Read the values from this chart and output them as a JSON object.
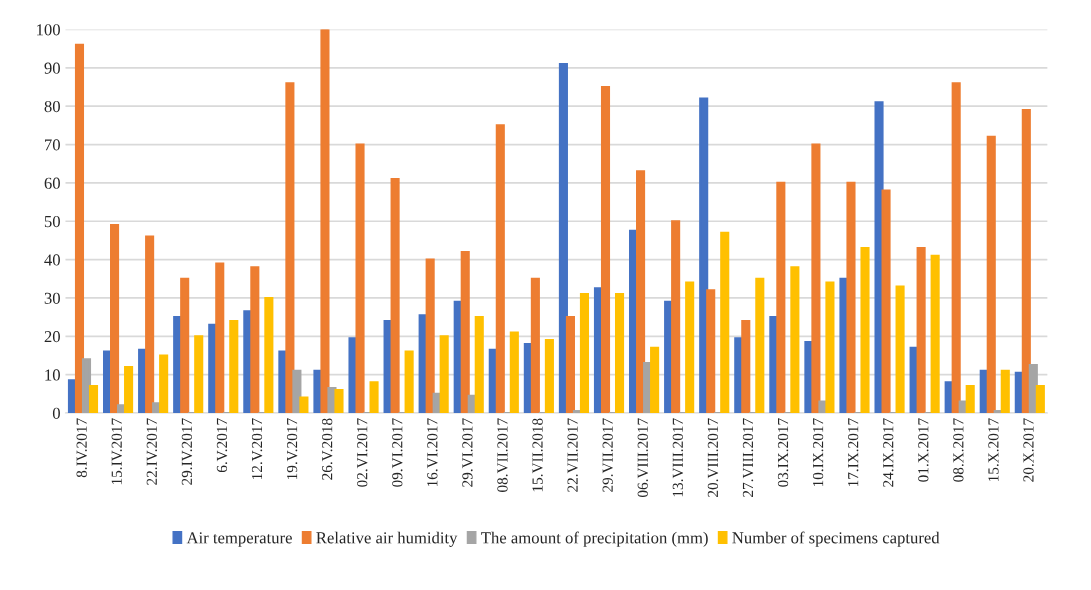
{
  "chart_data": {
    "type": "bar",
    "categories": [
      "8.IV.2017",
      "15.IV.2017",
      "22.IV.2017",
      "29.IV.2017",
      "6.V.2017",
      "12.V.2017",
      "19.V.2017",
      "26.V.2018",
      "02.VI.2017",
      "09.VI.2017",
      "16.VI.2017",
      "29.VI.2017",
      "08.VII.2017",
      "15.VII.2018",
      "22.VII.2017",
      "29.VII.2017",
      "06.VIII.2017",
      "13.VIII.2017",
      "20.VIII.2017",
      "27.VIII.2017",
      "03.IX.2017",
      "10.IX.2017",
      "17.IX.2017",
      "24.IX.2017",
      "01.X.2017",
      "08.X.2017",
      "15.X.2017",
      "20.X.2017"
    ],
    "series": [
      {
        "name": "Air temperature",
        "color": "#4472c4",
        "values": [
          8.5,
          16,
          16.5,
          25,
          23,
          26.5,
          16,
          11,
          19.5,
          24,
          25.5,
          29,
          16.5,
          18,
          91,
          32.5,
          47.5,
          29,
          82,
          19.5,
          25,
          18.5,
          35,
          81,
          17,
          8,
          11,
          10.5
        ]
      },
      {
        "name": "Relative air humidity",
        "color": "#ed7d31",
        "values": [
          96,
          49,
          46,
          35,
          39,
          38,
          86,
          100,
          70,
          61,
          40,
          42,
          75,
          35,
          25,
          85,
          63,
          50,
          32,
          24,
          60,
          70,
          60,
          58,
          43,
          86,
          72,
          79
        ]
      },
      {
        "name": "The amount of precipitation (mm)",
        "color": "#a5a5a5",
        "values": [
          14,
          2,
          2.5,
          0,
          0,
          0,
          11,
          6.5,
          0,
          0,
          5,
          4.5,
          0,
          0,
          0.5,
          0,
          13,
          0,
          0,
          0,
          0,
          3,
          0,
          0,
          0,
          3,
          0.5,
          12.5
        ]
      },
      {
        "name": "Number of specimens captured",
        "color": "#ffc000",
        "values": [
          7,
          12,
          15,
          20,
          24,
          30,
          4,
          6,
          8,
          16,
          20,
          25,
          21,
          19,
          31,
          31,
          17,
          34,
          47,
          35,
          38,
          34,
          43,
          33,
          41,
          7,
          11,
          7
        ]
      }
    ],
    "ylim": [
      0,
      100
    ],
    "yticks": [
      0,
      10,
      20,
      30,
      40,
      50,
      60,
      70,
      80,
      90,
      100
    ],
    "grid": "y",
    "legend": "bottom"
  }
}
